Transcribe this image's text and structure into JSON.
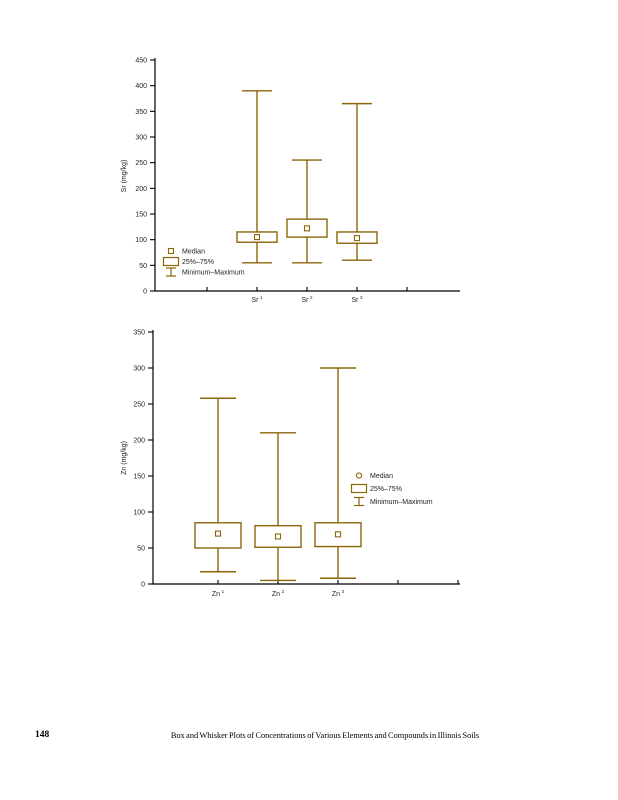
{
  "page": {
    "number": "148",
    "caption": "Box and Whisker Plots of Concentrations of Various Elements and Compounds in Illinois Soils"
  },
  "colors": {
    "box_outline": "#8c650a",
    "axis": "#000000",
    "tick_text": "#222222",
    "background": "#ffffff"
  },
  "chart_data": [
    {
      "type": "box",
      "element": "Sr",
      "ylabel": "Sr (mg/kg)",
      "ylim": [
        0,
        450
      ],
      "ytick_step": 50,
      "grid": false,
      "legend": {
        "position": "bottom-left-inside",
        "median_symbol": "square",
        "items": [
          "Median",
          "25%–75%",
          "Minimum–Maximum"
        ]
      },
      "categories": [
        {
          "base": "Sr",
          "sup": "1"
        },
        {
          "base": "Sr",
          "sup": "2"
        },
        {
          "base": "Sr",
          "sup": "3"
        }
      ],
      "series": [
        {
          "name": "Sr 1",
          "min": 55,
          "q1": 95,
          "median": 105,
          "q3": 115,
          "max": 390
        },
        {
          "name": "Sr 2",
          "min": 55,
          "q1": 105,
          "median": 122,
          "q3": 140,
          "max": 255
        },
        {
          "name": "Sr 3",
          "min": 60,
          "q1": 93,
          "median": 103,
          "q3": 115,
          "max": 365
        }
      ]
    },
    {
      "type": "box",
      "element": "Zn",
      "ylabel": "Zn (mg/kg)",
      "ylim": [
        0,
        350
      ],
      "ytick_step": 50,
      "grid": false,
      "legend": {
        "position": "middle-right-inside",
        "median_symbol": "circle",
        "items": [
          "Median",
          "25%–75%",
          "Minimum–Maximum"
        ]
      },
      "categories": [
        {
          "base": "Zn",
          "sup": "1"
        },
        {
          "base": "Zn",
          "sup": "2"
        },
        {
          "base": "Zn",
          "sup": "3"
        }
      ],
      "series": [
        {
          "name": "Zn 1",
          "min": 17,
          "q1": 50,
          "median": 70,
          "q3": 85,
          "max": 258
        },
        {
          "name": "Zn 2",
          "min": 5,
          "q1": 51,
          "median": 66,
          "q3": 81,
          "max": 210
        },
        {
          "name": "Zn 3",
          "min": 8,
          "q1": 52,
          "median": 69,
          "q3": 85,
          "max": 300
        }
      ]
    }
  ]
}
